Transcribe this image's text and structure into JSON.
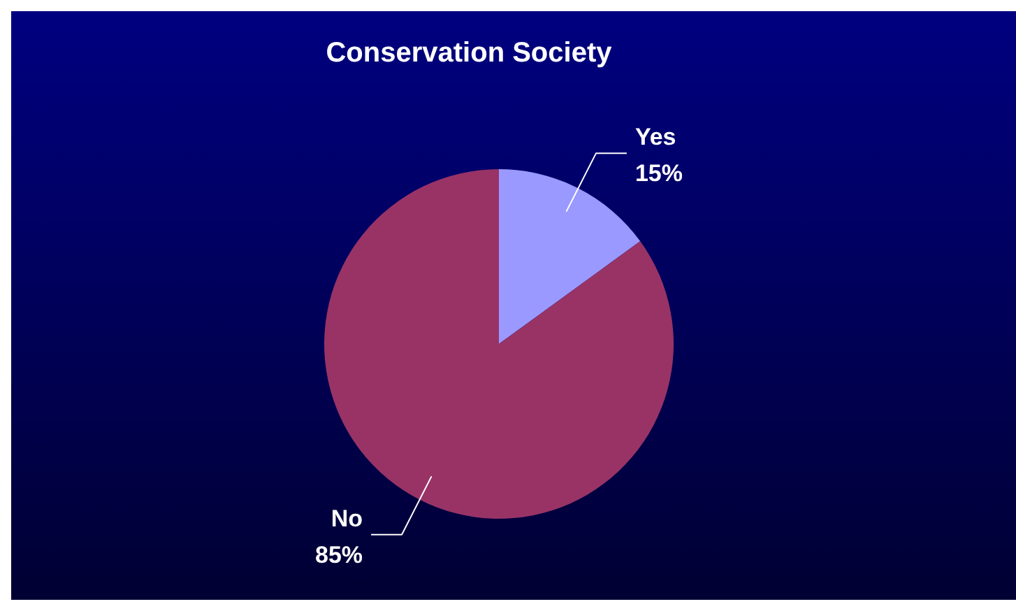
{
  "chart_data": {
    "type": "pie",
    "title": "Conservation Society",
    "categories": [
      "Yes",
      "No"
    ],
    "values": [
      15,
      85
    ],
    "colors": [
      "#9999ff",
      "#993366"
    ],
    "value_labels": [
      "15%",
      "85%"
    ]
  }
}
